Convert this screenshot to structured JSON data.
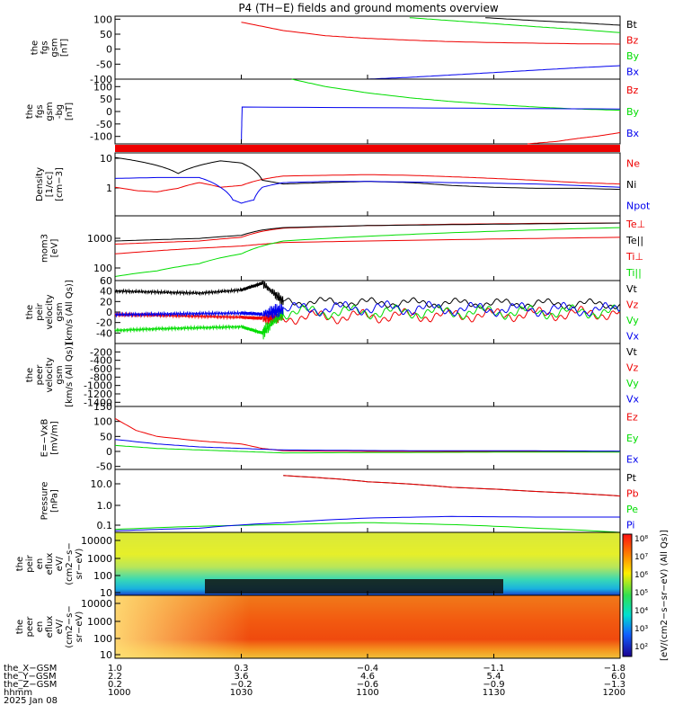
{
  "title": "P4 (TH−E) fields and ground moments overview",
  "colors": {
    "black": "#000000",
    "red": "#ee0000",
    "green": "#00dd00",
    "blue": "#0000ee"
  },
  "panels": [
    {
      "id": "fgs_gsm",
      "ylabel": [
        "the",
        "fgs",
        "gsm",
        "[nT]"
      ],
      "yticks": [
        100,
        50,
        0,
        -50,
        -100
      ],
      "ylim": [
        -100,
        110
      ],
      "legend": [
        {
          "t": "Bt",
          "c": "black"
        },
        {
          "t": "Bz",
          "c": "red"
        },
        {
          "t": "By",
          "c": "green"
        },
        {
          "t": "Bx",
          "c": "blue"
        }
      ]
    },
    {
      "id": "fgs_gsm_bg",
      "ylabel": [
        "the",
        "fgs",
        "gsm",
        "-bg",
        "[nT]"
      ],
      "yticks": [
        100,
        50,
        0,
        -50,
        -100
      ],
      "ylim": [
        -130,
        130
      ],
      "legend": [
        {
          "t": "Bz",
          "c": "red"
        },
        {
          "t": "By",
          "c": "green"
        },
        {
          "t": "Bx",
          "c": "blue"
        }
      ]
    },
    {
      "id": "bar",
      "ylabel": [],
      "yticks": [],
      "legend": []
    },
    {
      "id": "density",
      "ylabel": [
        "Density",
        "[1/cc]",
        "[cm−3]"
      ],
      "yticks": [
        "10",
        "1"
      ],
      "legend": [
        {
          "t": "Ne",
          "c": "red"
        },
        {
          "t": "Ni",
          "c": "black"
        },
        {
          "t": "Npot",
          "c": "blue"
        }
      ]
    },
    {
      "id": "temp",
      "ylabel": [
        "mom3",
        "[eV]"
      ],
      "yticks": [
        "1000",
        "100"
      ],
      "legend": [
        {
          "t": "Te⊥",
          "c": "red"
        },
        {
          "t": "Te||",
          "c": "black"
        },
        {
          "t": "Ti⊥",
          "c": "red"
        },
        {
          "t": "Ti||",
          "c": "green"
        }
      ]
    },
    {
      "id": "peir_v",
      "ylabel": [
        "the",
        "peir",
        "velocity",
        "gsm",
        "[km/s (All Qs)]"
      ],
      "yticks": [
        60,
        40,
        20,
        0,
        -20,
        -40
      ],
      "ylim": [
        -60,
        60
      ],
      "legend": [
        {
          "t": "Vt",
          "c": "black"
        },
        {
          "t": "Vz",
          "c": "red"
        },
        {
          "t": "Vy",
          "c": "green"
        },
        {
          "t": "Vx",
          "c": "blue"
        }
      ]
    },
    {
      "id": "peer_v",
      "ylabel": [
        "the",
        "peer",
        "velocity",
        "gsm",
        "[km/s (All Qs)]"
      ],
      "yticks": [
        -200,
        -400,
        -600,
        -800,
        -1000,
        -1200,
        -1400
      ],
      "ylim": [
        -1500,
        0
      ],
      "legend": [
        {
          "t": "Vt",
          "c": "black"
        },
        {
          "t": "Vz",
          "c": "red"
        },
        {
          "t": "Vy",
          "c": "green"
        },
        {
          "t": "Vx",
          "c": "blue"
        }
      ]
    },
    {
      "id": "efield",
      "ylabel": [
        "E=−VxB",
        "[mV/m]"
      ],
      "yticks": [
        150,
        100,
        50,
        0,
        -50
      ],
      "ylim": [
        -60,
        150
      ],
      "legend": [
        {
          "t": "Ez",
          "c": "red"
        },
        {
          "t": "Ey",
          "c": "green"
        },
        {
          "t": "Ex",
          "c": "blue"
        }
      ]
    },
    {
      "id": "pressure",
      "ylabel": [
        "Pressure",
        "[nPa]"
      ],
      "yticks": [
        "10.0",
        "1.0",
        "0.1"
      ],
      "legend": [
        {
          "t": "Pt",
          "c": "black"
        },
        {
          "t": "Pb",
          "c": "red"
        },
        {
          "t": "Pe",
          "c": "green"
        },
        {
          "t": "Pi",
          "c": "blue"
        }
      ]
    },
    {
      "id": "peir_eflux",
      "ylabel": [
        "the",
        "peir",
        "en",
        "eflux",
        "eV/",
        "(cm2−s−",
        "sr−eV)"
      ],
      "yticks": [
        "10000",
        "1000",
        "100",
        "10"
      ],
      "legend": []
    },
    {
      "id": "peer_eflux",
      "ylabel": [
        "the",
        "peer",
        "en",
        "eflux",
        "eV/",
        "(cm2−s−",
        "sr−eV)"
      ],
      "yticks": [
        "10000",
        "1000",
        "100",
        "10"
      ],
      "legend": []
    }
  ],
  "colorbar": {
    "label": "[eV/(cm2−s−sr−eV) (All Qs)]",
    "ticks": [
      "10⁸",
      "10⁷",
      "10⁶",
      "10⁵",
      "10⁴",
      "10³",
      "10²"
    ]
  },
  "xaxis": {
    "ticks": [
      0,
      30,
      60,
      90,
      120
    ],
    "rows": [
      {
        "label": "the_X−GSM",
        "values": [
          "1.0",
          "0.3",
          "−0.4",
          "−1.1",
          "−1.8"
        ]
      },
      {
        "label": "the_Y−GSM",
        "values": [
          "2.2",
          "3.6",
          "4.6",
          "5.4",
          "6.0"
        ]
      },
      {
        "label": "the_Z−GSM",
        "values": [
          "0.2",
          "−0.2",
          "−0.6",
          "−0.9",
          "−1.3"
        ]
      },
      {
        "label": "hhmm",
        "values": [
          "1000",
          "1030",
          "1100",
          "1130",
          "1200"
        ]
      }
    ],
    "date": "2025 Jan 08"
  },
  "chart_data": {
    "type": "line",
    "title": "P4 (TH−E) fields and ground moments overview",
    "x_unit": "minutes after 10:00",
    "xlim": [
      0,
      120
    ],
    "panels": {
      "fgs_gsm": {
        "series": [
          {
            "name": "Bt",
            "x": [
              88,
              100,
              110,
              120
            ],
            "y": [
              105,
              95,
              88,
              80
            ]
          },
          {
            "name": "Bz",
            "x": [
              30,
              40,
              50,
              60,
              70,
              80,
              90,
              100,
              110,
              120
            ],
            "y": [
              90,
              62,
              45,
              36,
              30,
              25,
              22,
              20,
              18,
              17
            ]
          },
          {
            "name": "By",
            "x": [
              70,
              80,
              90,
              100,
              110,
              120
            ],
            "y": [
              105,
              95,
              85,
              75,
              66,
              55
            ]
          },
          {
            "name": "Bx",
            "x": [
              60,
              70,
              80,
              90,
              100,
              110,
              120
            ],
            "y": [
              -100,
              -94,
              -86,
              -78,
              -70,
              -62,
              -55
            ]
          }
        ]
      },
      "fgs_gsm_bg": {
        "series": [
          {
            "name": "Bz",
            "x": [
              98,
              105,
              110,
              115,
              120
            ],
            "y": [
              -130,
              -120,
              -108,
              -98,
              -85
            ]
          },
          {
            "name": "By",
            "x": [
              42,
              50,
              60,
              70,
              80,
              90,
              100,
              110,
              120
            ],
            "y": [
              130,
              100,
              75,
              55,
              40,
              28,
              18,
              10,
              5
            ]
          },
          {
            "name": "Bx",
            "x": [
              30,
              30.2,
              120
            ],
            "y": [
              -130,
              18,
              10
            ]
          }
        ]
      },
      "density": {
        "series": [
          {
            "name": "Ne",
            "x": [
              0,
              5,
              10,
              15,
              20,
              25,
              30,
              35,
              40,
              50,
              60,
              70,
              80,
              90,
              100,
              110,
              120
            ],
            "y": [
              0.6,
              0.45,
              0.4,
              0.55,
              0.9,
              0.6,
              0.7,
              1.2,
              1.6,
              1.7,
              1.8,
              1.7,
              1.5,
              1.3,
              1.1,
              0.9,
              0.8
            ]
          },
          {
            "name": "Ni",
            "x": [
              0,
              5,
              10,
              15,
              20,
              25,
              30,
              35,
              40,
              50,
              60,
              70,
              80,
              90,
              100,
              110,
              120
            ],
            "y": [
              8,
              6,
              4,
              2,
              4,
              6,
              5,
              1.1,
              0.8,
              0.9,
              1,
              0.9,
              0.7,
              0.6,
              0.55,
              0.55,
              0.5
            ]
          },
          {
            "name": "Npot",
            "x": [
              0,
              10,
              20,
              25,
              28,
              30,
              33,
              35,
              40,
              50,
              60,
              80,
              100,
              120
            ],
            "y": [
              1.3,
              1.4,
              1.4,
              0.6,
              0.2,
              0.15,
              0.2,
              0.6,
              0.9,
              1,
              1,
              0.9,
              0.8,
              0.6
            ]
          }
        ]
      },
      "temp": {
        "series": [
          {
            "name": "Te⊥",
            "x": [
              0,
              10,
              20,
              30,
              35,
              40,
              60,
              80,
              100,
              120
            ],
            "y": [
              800,
              900,
              1000,
              1300,
              2000,
              2500,
              3000,
              3300,
              3500,
              3600
            ]
          },
          {
            "name": "Te||",
            "x": [
              0,
              10,
              20,
              30,
              35,
              40,
              60,
              80,
              100,
              120
            ],
            "y": [
              1000,
              1100,
              1200,
              1500,
              2200,
              2600,
              3000,
              3200,
              3400,
              3600
            ]
          },
          {
            "name": "Ti⊥",
            "x": [
              0,
              10,
              20,
              30,
              35,
              40,
              60,
              80,
              100,
              120
            ],
            "y": [
              400,
              500,
              600,
              700,
              800,
              900,
              1000,
              1100,
              1200,
              1300
            ]
          },
          {
            "name": "Ti||",
            "x": [
              0,
              10,
              20,
              30,
              35,
              40,
              60,
              80,
              100,
              120
            ],
            "y": [
              80,
              120,
              200,
              400,
              700,
              1000,
              1400,
              1800,
              2200,
              2600
            ]
          }
        ]
      },
      "peir_v": {
        "series": [
          {
            "name": "Vt",
            "x": [
              0,
              10,
              20,
              30,
              35,
              40,
              60,
              80,
              100,
              120
            ],
            "y": [
              40,
              38,
              36,
              42,
              55,
              20,
              18,
              17,
              16,
              15
            ]
          },
          {
            "name": "Vz",
            "x": [
              0,
              10,
              20,
              30,
              35,
              40,
              60,
              80,
              100,
              120
            ],
            "y": [
              -5,
              -6,
              -8,
              -10,
              -12,
              -10,
              -8,
              -6,
              -4,
              -2
            ]
          },
          {
            "name": "Vy",
            "x": [
              0,
              10,
              20,
              30,
              35,
              40,
              60,
              80,
              100,
              120
            ],
            "y": [
              -35,
              -32,
              -30,
              -28,
              -40,
              0,
              0,
              0,
              0,
              0
            ]
          },
          {
            "name": "Vx",
            "x": [
              0,
              10,
              20,
              30,
              35,
              40,
              60,
              80,
              100,
              120
            ],
            "y": [
              -5,
              -4,
              -3,
              -2,
              -4,
              5,
              8,
              6,
              5,
              4
            ]
          }
        ]
      },
      "efield": {
        "series": [
          {
            "name": "Ez",
            "x": [
              0,
              5,
              10,
              20,
              30,
              35,
              40,
              60,
              80,
              100,
              120
            ],
            "y": [
              110,
              70,
              50,
              35,
              25,
              10,
              2,
              0,
              0,
              0,
              0
            ]
          },
          {
            "name": "Ey",
            "x": [
              0,
              10,
              20,
              30,
              40,
              60,
              80,
              100,
              120
            ],
            "y": [
              20,
              10,
              5,
              0,
              -5,
              -4,
              -3,
              -2,
              -2
            ]
          },
          {
            "name": "Ex",
            "x": [
              0,
              10,
              20,
              30,
              40,
              60,
              80,
              100,
              120
            ],
            "y": [
              40,
              25,
              15,
              10,
              5,
              3,
              2,
              2,
              1
            ]
          }
        ]
      },
      "pressure": {
        "series": [
          {
            "name": "Pt",
            "x": [
              40,
              60,
              80,
              100,
              120
            ],
            "y": [
              30,
              15,
              8,
              5,
              3
            ]
          },
          {
            "name": "Pb",
            "x": [
              40,
              60,
              80,
              100,
              120
            ],
            "y": [
              30,
              15,
              8,
              5,
              3
            ]
          },
          {
            "name": "Pe",
            "x": [
              0,
              20,
              40,
              60,
              80,
              100,
              120
            ],
            "y": [
              0.07,
              0.1,
              0.12,
              0.15,
              0.12,
              0.08,
              0.05
            ]
          },
          {
            "name": "Pi",
            "x": [
              0,
              20,
              40,
              60,
              80,
              100,
              120
            ],
            "y": [
              0.06,
              0.08,
              0.15,
              0.25,
              0.3,
              0.28,
              0.28
            ]
          }
        ]
      }
    }
  }
}
